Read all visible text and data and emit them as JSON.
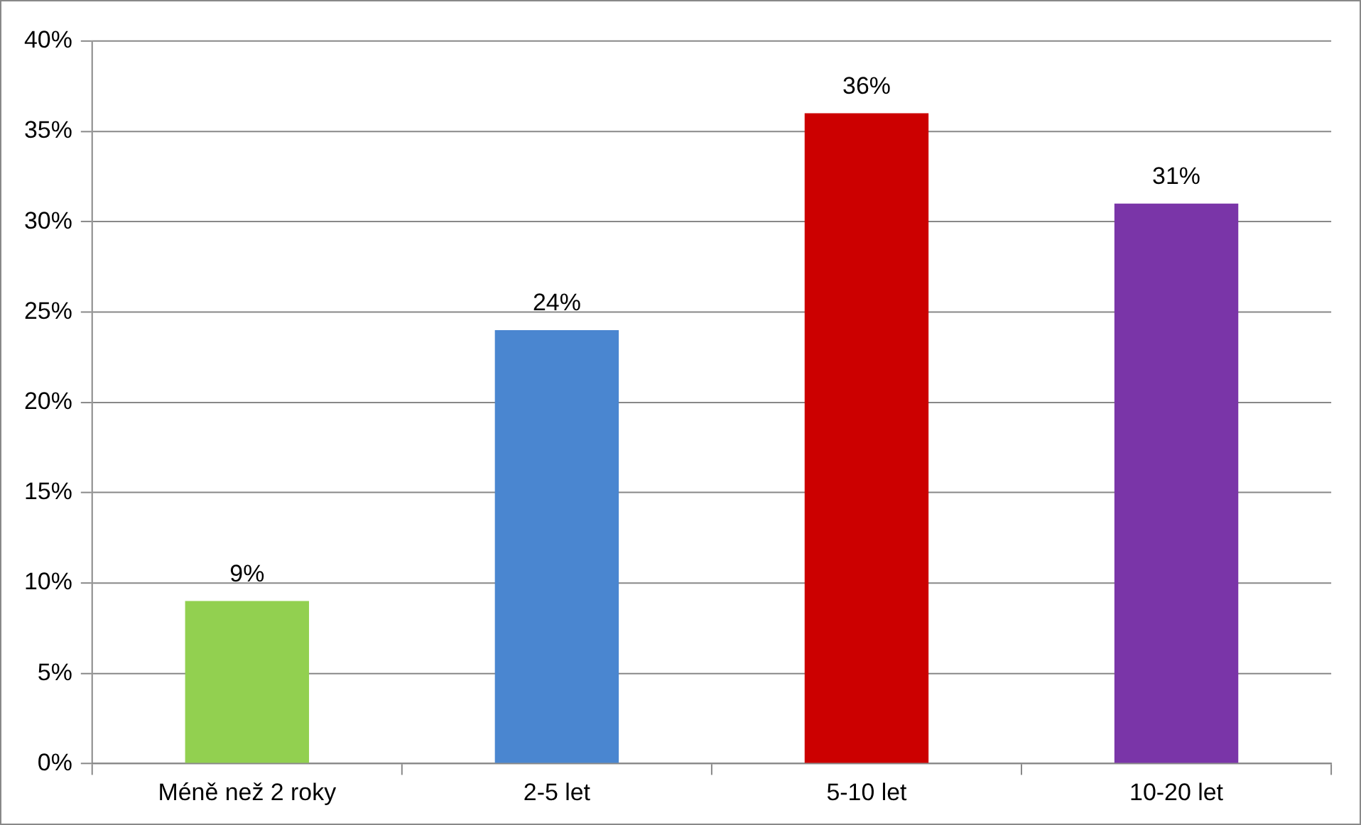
{
  "chart_data": {
    "type": "bar",
    "categories": [
      "Méně než 2 roky",
      "2-5 let",
      "5-10 let",
      "10-20 let"
    ],
    "values": [
      9,
      24,
      36,
      31
    ],
    "colors": [
      "#92d050",
      "#4a86d0",
      "#cc0000",
      "#7a35a8"
    ],
    "value_labels": [
      "9%",
      "24%",
      "36%",
      "31%"
    ],
    "ylim": [
      0,
      40
    ],
    "yticks": [
      {
        "value": 0,
        "label": "0%"
      },
      {
        "value": 5,
        "label": "5%"
      },
      {
        "value": 10,
        "label": "10%"
      },
      {
        "value": 15,
        "label": "15%"
      },
      {
        "value": 20,
        "label": "20%"
      },
      {
        "value": 25,
        "label": "25%"
      },
      {
        "value": 30,
        "label": "30%"
      },
      {
        "value": 35,
        "label": "35%"
      },
      {
        "value": 40,
        "label": "40%"
      }
    ],
    "grid": "y",
    "legend": false
  }
}
